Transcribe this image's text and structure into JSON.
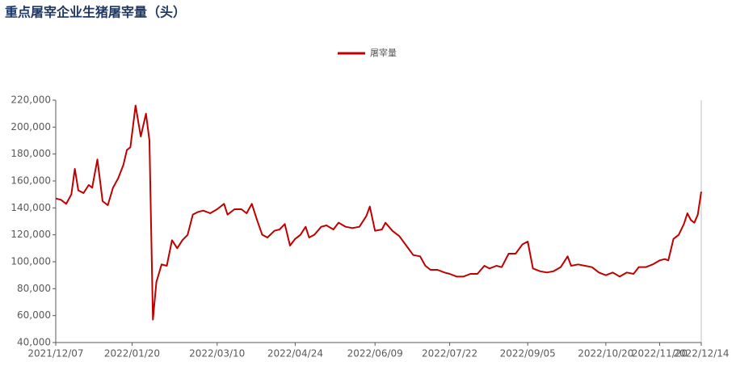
{
  "chart_data": {
    "type": "line",
    "title": "重点屠宰企业生猪屠宰量（头）",
    "x": [
      "2021/12/07",
      "2021/12/10",
      "2021/12/13",
      "2021/12/16",
      "2021/12/18",
      "2021/12/20",
      "2021/12/23",
      "2021/12/26",
      "2021/12/28",
      "2021/12/31",
      "2022/01/03",
      "2022/01/06",
      "2022/01/09",
      "2022/01/12",
      "2022/01/15",
      "2022/01/17",
      "2022/01/19",
      "2022/01/22",
      "2022/01/25",
      "2022/01/28",
      "2022/01/30",
      "2022/02/01",
      "2022/02/03",
      "2022/02/06",
      "2022/02/09",
      "2022/02/12",
      "2022/02/15",
      "2022/02/18",
      "2022/02/21",
      "2022/02/24",
      "2022/02/27",
      "2022/03/02",
      "2022/03/06",
      "2022/03/10",
      "2022/03/14",
      "2022/03/16",
      "2022/03/20",
      "2022/03/24",
      "2022/03/27",
      "2022/03/30",
      "2022/04/02",
      "2022/04/05",
      "2022/04/08",
      "2022/04/12",
      "2022/04/15",
      "2022/04/18",
      "2022/04/21",
      "2022/04/24",
      "2022/04/27",
      "2022/04/30",
      "2022/05/02",
      "2022/05/05",
      "2022/05/09",
      "2022/05/12",
      "2022/05/16",
      "2022/05/19",
      "2022/05/23",
      "2022/05/27",
      "2022/05/31",
      "2022/06/04",
      "2022/06/06",
      "2022/06/09",
      "2022/06/13",
      "2022/06/15",
      "2022/06/19",
      "2022/06/23",
      "2022/06/27",
      "2022/07/01",
      "2022/07/05",
      "2022/07/08",
      "2022/07/11",
      "2022/07/15",
      "2022/07/19",
      "2022/07/22",
      "2022/07/26",
      "2022/07/30",
      "2022/08/03",
      "2022/08/07",
      "2022/08/11",
      "2022/08/14",
      "2022/08/18",
      "2022/08/21",
      "2022/08/25",
      "2022/08/29",
      "2022/09/02",
      "2022/09/05",
      "2022/09/08",
      "2022/09/12",
      "2022/09/16",
      "2022/09/20",
      "2022/09/24",
      "2022/09/28",
      "2022/09/30",
      "2022/10/04",
      "2022/10/08",
      "2022/10/12",
      "2022/10/16",
      "2022/10/20",
      "2022/10/24",
      "2022/10/28",
      "2022/11/01",
      "2022/11/05",
      "2022/11/08",
      "2022/11/12",
      "2022/11/16",
      "2022/11/20",
      "2022/11/23",
      "2022/11/25",
      "2022/11/28",
      "2022/12/01",
      "2022/12/04",
      "2022/12/06",
      "2022/12/08",
      "2022/12/10",
      "2022/12/12",
      "2022/12/14"
    ],
    "series": [
      {
        "name": "屠宰量",
        "color": "#c00000",
        "values": [
          147000,
          146000,
          143000,
          150000,
          169000,
          153000,
          151000,
          157000,
          155000,
          176000,
          145000,
          142000,
          155000,
          162000,
          172000,
          183000,
          185000,
          216000,
          193000,
          210000,
          190000,
          57000,
          85000,
          98000,
          97000,
          116000,
          110000,
          116000,
          120000,
          135000,
          137000,
          138000,
          136000,
          139000,
          143000,
          135000,
          139000,
          139000,
          136000,
          143000,
          131000,
          120000,
          118000,
          123000,
          124000,
          128000,
          112000,
          117000,
          120000,
          126000,
          118000,
          120000,
          126000,
          127000,
          124000,
          129000,
          126000,
          125000,
          126000,
          134000,
          141000,
          123000,
          124000,
          129000,
          123000,
          119000,
          112000,
          105000,
          104000,
          97000,
          94000,
          94000,
          92000,
          91000,
          89000,
          89000,
          91000,
          91000,
          97000,
          95000,
          97000,
          96000,
          106000,
          106000,
          113000,
          115000,
          95000,
          93000,
          92000,
          93000,
          96000,
          104000,
          97000,
          98000,
          97000,
          96000,
          92000,
          90000,
          92000,
          89000,
          92000,
          91000,
          96000,
          96000,
          98000,
          101000,
          102000,
          101000,
          117000,
          120000,
          128000,
          136000,
          131000,
          129000,
          135000,
          152000
        ]
      }
    ],
    "xlim": [
      "2021/12/07",
      "2022/12/14"
    ],
    "xticks": [
      "2021/12/07",
      "2022/01/20",
      "2022/03/10",
      "2022/04/24",
      "2022/06/09",
      "2022/07/22",
      "2022/09/05",
      "2022/10/20",
      "2022/11/20",
      "2022/12/14"
    ],
    "ylim": [
      40000,
      220000
    ],
    "yticks": [
      {
        "value": 40000,
        "label": "40,000"
      },
      {
        "value": 60000,
        "label": "60,000"
      },
      {
        "value": 80000,
        "label": "80,000"
      },
      {
        "value": 100000,
        "label": "100,000"
      },
      {
        "value": 120000,
        "label": "120,000"
      },
      {
        "value": 140000,
        "label": "140,000"
      },
      {
        "value": 160000,
        "label": "160,000"
      },
      {
        "value": 180000,
        "label": "180,000"
      },
      {
        "value": 200000,
        "label": "200,000"
      },
      {
        "value": 220000,
        "label": "220,000"
      }
    ],
    "grid": false
  }
}
